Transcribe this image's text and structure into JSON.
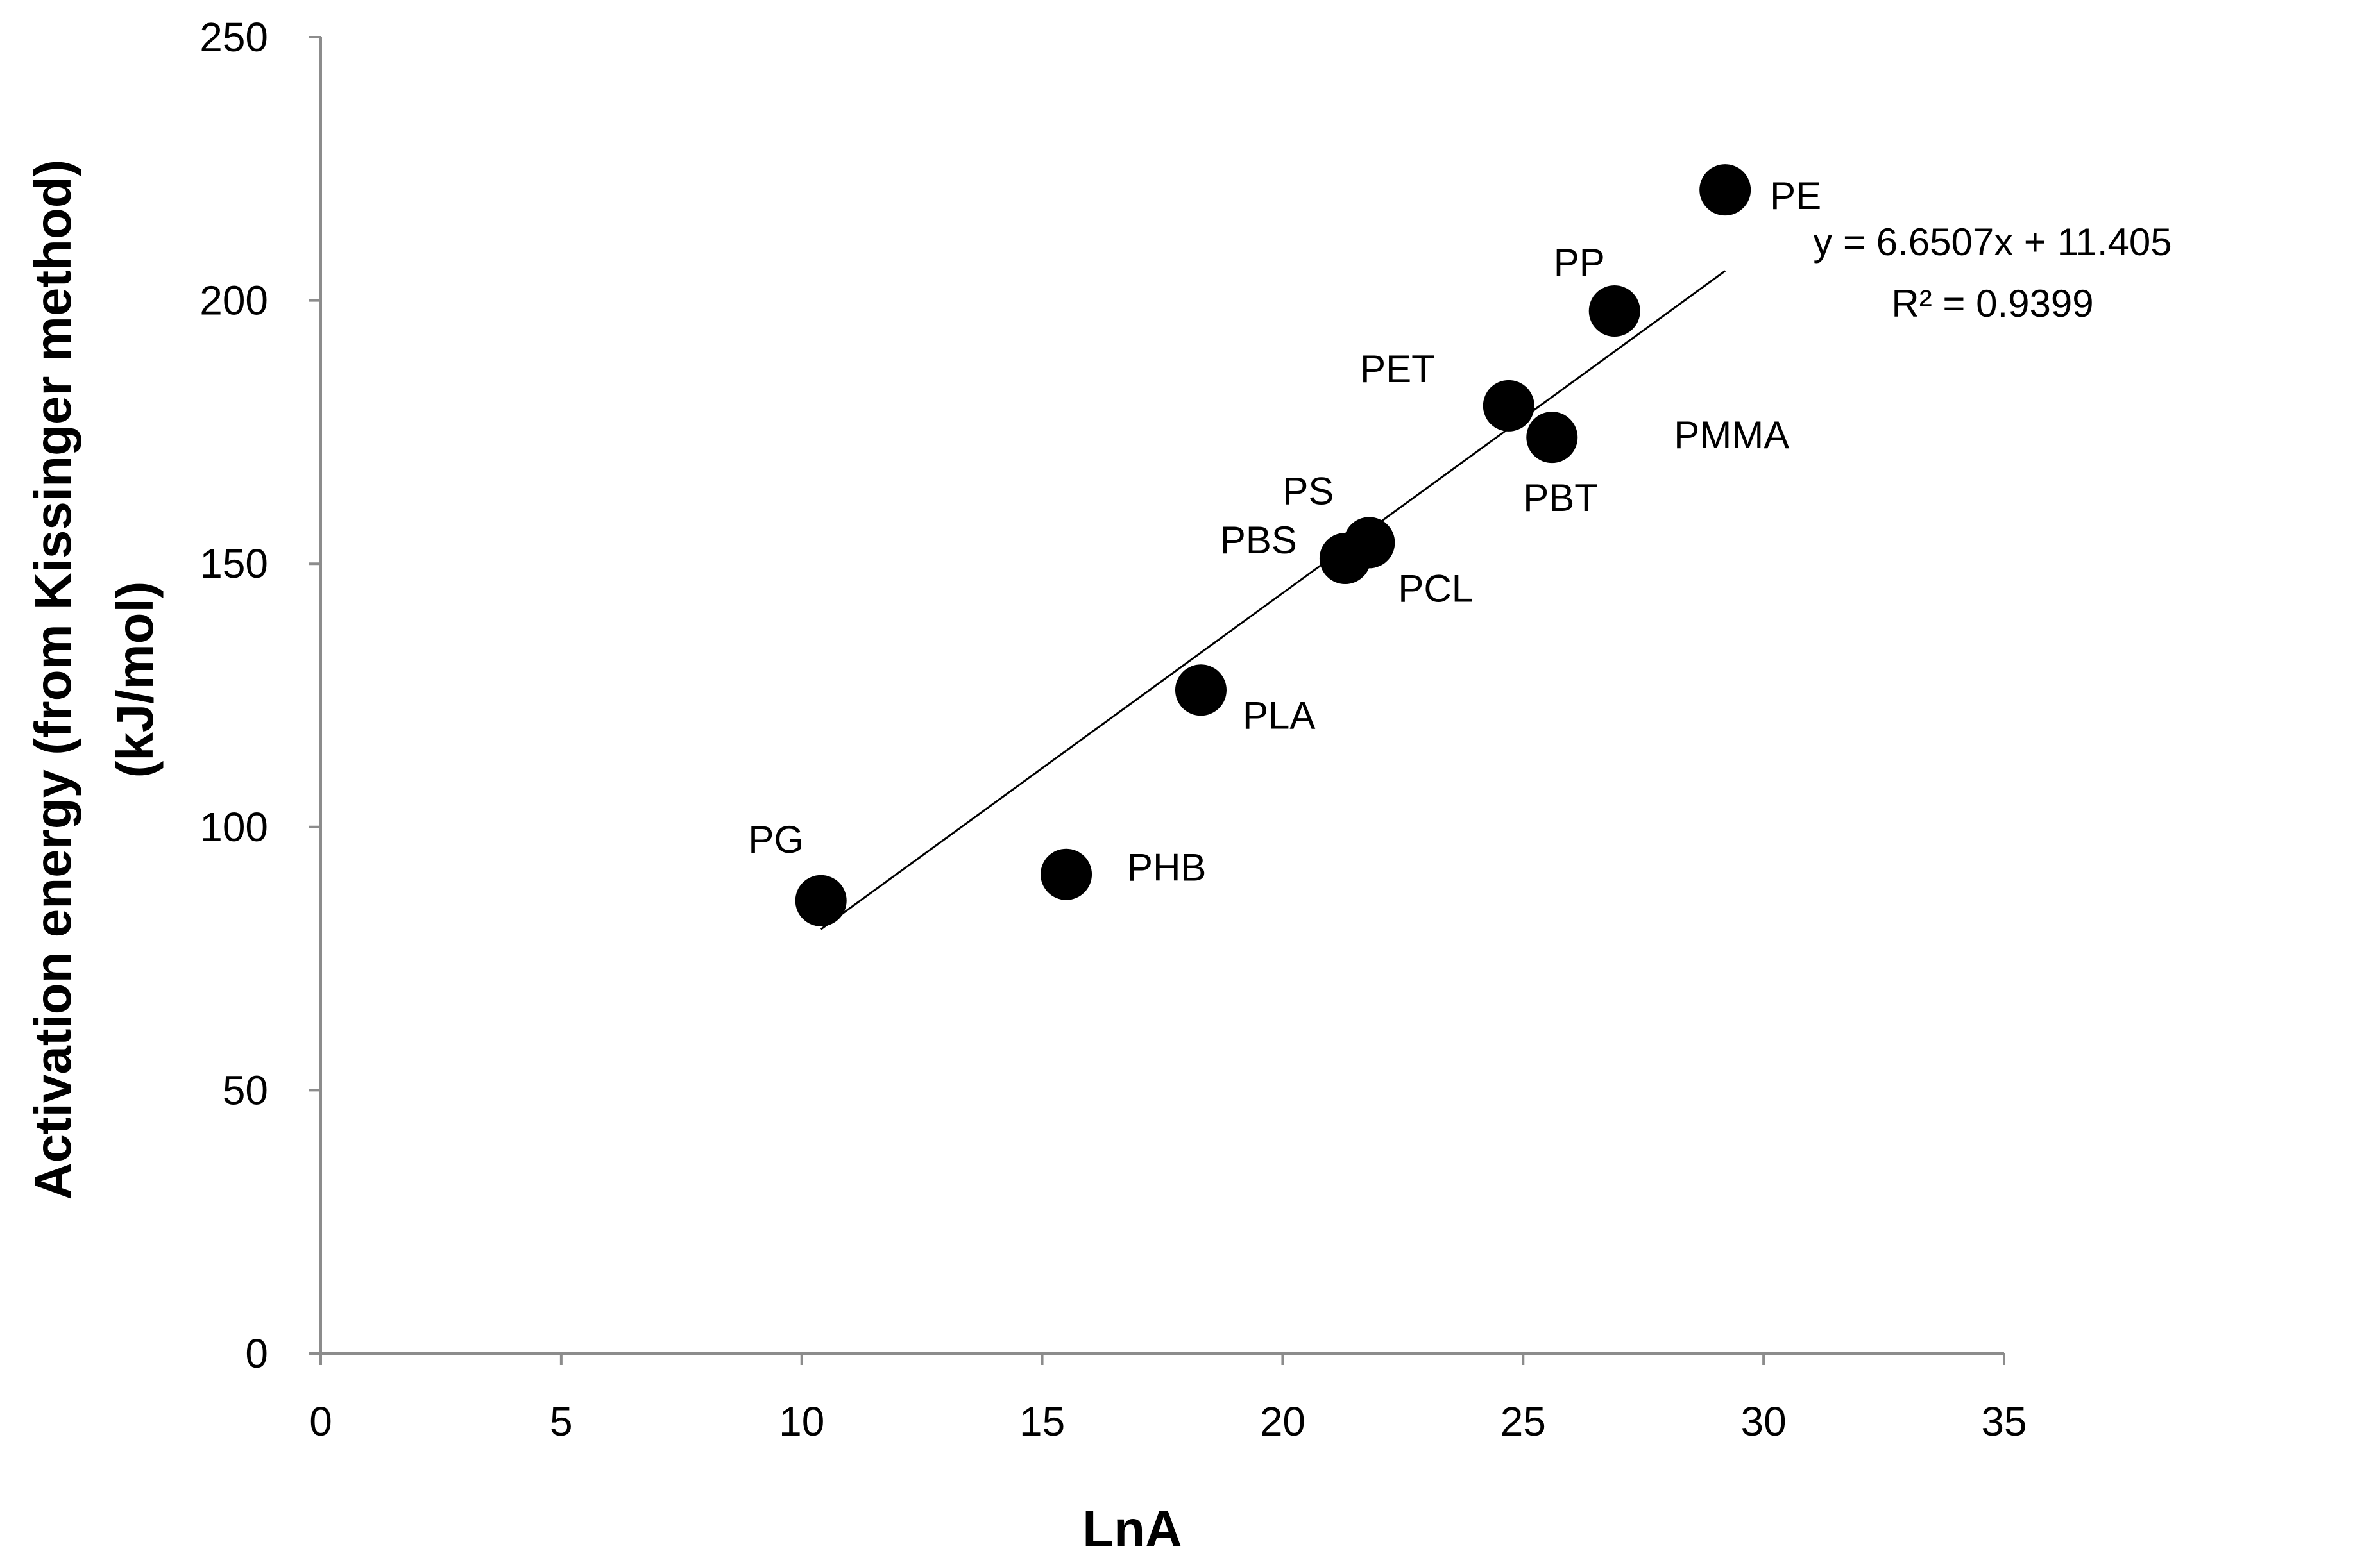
{
  "chart_data": {
    "type": "scatter",
    "xlabel": "LnA",
    "ylabel_line1": "Activation energy (from Kissinger method)",
    "ylabel_line2": "(kJ/mol)",
    "xlim": [
      0,
      35
    ],
    "ylim": [
      0,
      250
    ],
    "xticks": [
      "0",
      "5",
      "10",
      "15",
      "20",
      "25",
      "30",
      "35"
    ],
    "yticks": [
      "0",
      "50",
      "100",
      "150",
      "200",
      "250"
    ],
    "points": [
      {
        "label": "PG",
        "x": 10.4,
        "y": 86
      },
      {
        "label": "PHB",
        "x": 15.5,
        "y": 91
      },
      {
        "label": "PLA",
        "x": 18.3,
        "y": 126
      },
      {
        "label": "PBS",
        "x": 21.3,
        "y": 151
      },
      {
        "label": "PCL",
        "x": 21.8,
        "y": 154
      },
      {
        "label": "PS",
        "x": 21.8,
        "y": 154
      },
      {
        "label": "PET",
        "x": 24.7,
        "y": 180
      },
      {
        "label": "PBT",
        "x": 25.6,
        "y": 174
      },
      {
        "label": "PMMA",
        "x": 25.6,
        "y": 174
      },
      {
        "label": "PP",
        "x": 26.9,
        "y": 198
      },
      {
        "label": "PE",
        "x": 29.2,
        "y": 221
      }
    ],
    "trendline": {
      "slope": 6.6507,
      "intercept": 11.405,
      "x_range": [
        10.4,
        29.2
      ],
      "equation": "y = 6.6507x + 11.405",
      "r2": "R² = 0.9399"
    },
    "grid": false,
    "legend": "none"
  }
}
